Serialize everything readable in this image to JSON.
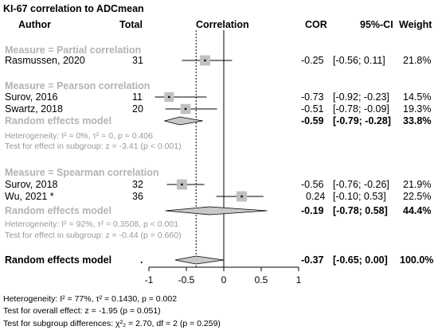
{
  "header": {
    "title": "KI-67 correlation to ADCmean",
    "col_author": "Author",
    "col_total": "Total",
    "col_correlation": "Correlation",
    "col_cor": "COR",
    "col_ci": "95%-CI",
    "col_weight": "Weight"
  },
  "groups": [
    {
      "label": "Measure = Partial correlation",
      "studies": [
        {
          "author": "Rasmussen, 2020",
          "total": "31",
          "cor": "-0.25",
          "ci": "[-0.56; 0.11]",
          "weight": "21.8%"
        }
      ],
      "re_label": "",
      "re_cor": "",
      "re_ci": "",
      "re_weight": "",
      "het": "",
      "test": ""
    },
    {
      "label": "Measure = Pearson correlation",
      "studies": [
        {
          "author": "Surov, 2016",
          "total": "11",
          "cor": "-0.73",
          "ci": "[-0.92; -0.23]",
          "weight": "14.5%"
        },
        {
          "author": "Swartz, 2018",
          "total": "20",
          "cor": "-0.51",
          "ci": "[-0.78; -0.09]",
          "weight": "19.3%"
        }
      ],
      "re_label": "Random effects model",
      "re_cor": "-0.59",
      "re_ci": "[-0.79; -0.28]",
      "re_weight": "33.8%",
      "het": "Heterogeneity: I² = 0%, τ² = 0, p = 0.406",
      "test": "Test for effect in subgroup: z = -3.41 (p < 0.001)"
    },
    {
      "label": "Measure = Spearman correlation",
      "studies": [
        {
          "author": "Surov, 2018",
          "total": "32",
          "cor": "-0.56",
          "ci": "[-0.76; -0.26]",
          "weight": "21.9%"
        },
        {
          "author": "Wu, 2021 *",
          "total": "36",
          "cor": "0.24",
          "ci": "[-0.10; 0.53]",
          "weight": "22.5%"
        }
      ],
      "re_label": "Random effects model",
      "re_cor": "-0.19",
      "re_ci": "[-0.78; 0.58]",
      "re_weight": "44.4%",
      "het": "Heterogeneity: I² = 92%, τ² = 0.3508, p < 0.001",
      "test": "Test for effect in subgroup: z = -0.44 (p = 0.660)"
    }
  ],
  "overall": {
    "label": "Random effects model",
    "total_dot": ".",
    "cor": "-0.37",
    "ci": "[-0.65; 0.00]",
    "weight": "100.0%"
  },
  "footer": {
    "heterogeneity": "Heterogeneity: I² = 77%, τ² = 0.1430, p = 0.002",
    "overall_test": "Test for overall effect: z = -1.95 (p = 0.051)",
    "subgroup_test": "Test for subgroup differences: χ²₂ = 2.70, df = 2 (p = 0.259)"
  },
  "colors": {
    "study_box": "#c0c0c0",
    "diamond": "#c8c8c8",
    "grey_text": "#9a9a9a"
  },
  "chart_data": {
    "type": "forest",
    "xlim": [
      -1,
      1
    ],
    "x_ticks": [
      "-1",
      "-0.5",
      "0",
      "0.5",
      "1"
    ],
    "x_tick_values": [
      -1,
      -0.5,
      0,
      0.5,
      1
    ],
    "reference_line": 0,
    "overall_line": -0.37,
    "studies": [
      {
        "name": "Rasmussen, 2020",
        "est": -0.25,
        "lo": -0.56,
        "hi": 0.11,
        "weight": 21.8
      },
      {
        "name": "Surov, 2016",
        "est": -0.73,
        "lo": -0.92,
        "hi": -0.23,
        "weight": 14.5
      },
      {
        "name": "Swartz, 2018",
        "est": -0.51,
        "lo": -0.78,
        "hi": -0.09,
        "weight": 19.3
      },
      {
        "name": "Surov, 2018",
        "est": -0.56,
        "lo": -0.76,
        "hi": -0.26,
        "weight": 21.9
      },
      {
        "name": "Wu, 2021 *",
        "est": 0.24,
        "lo": -0.1,
        "hi": 0.53,
        "weight": 22.5
      }
    ],
    "summaries": [
      {
        "name": "Pearson random effects",
        "est": -0.59,
        "lo": -0.79,
        "hi": -0.28
      },
      {
        "name": "Spearman random effects",
        "est": -0.19,
        "lo": -0.78,
        "hi": 0.58
      },
      {
        "name": "Overall random effects",
        "est": -0.37,
        "lo": -0.65,
        "hi": 0.0
      }
    ]
  }
}
